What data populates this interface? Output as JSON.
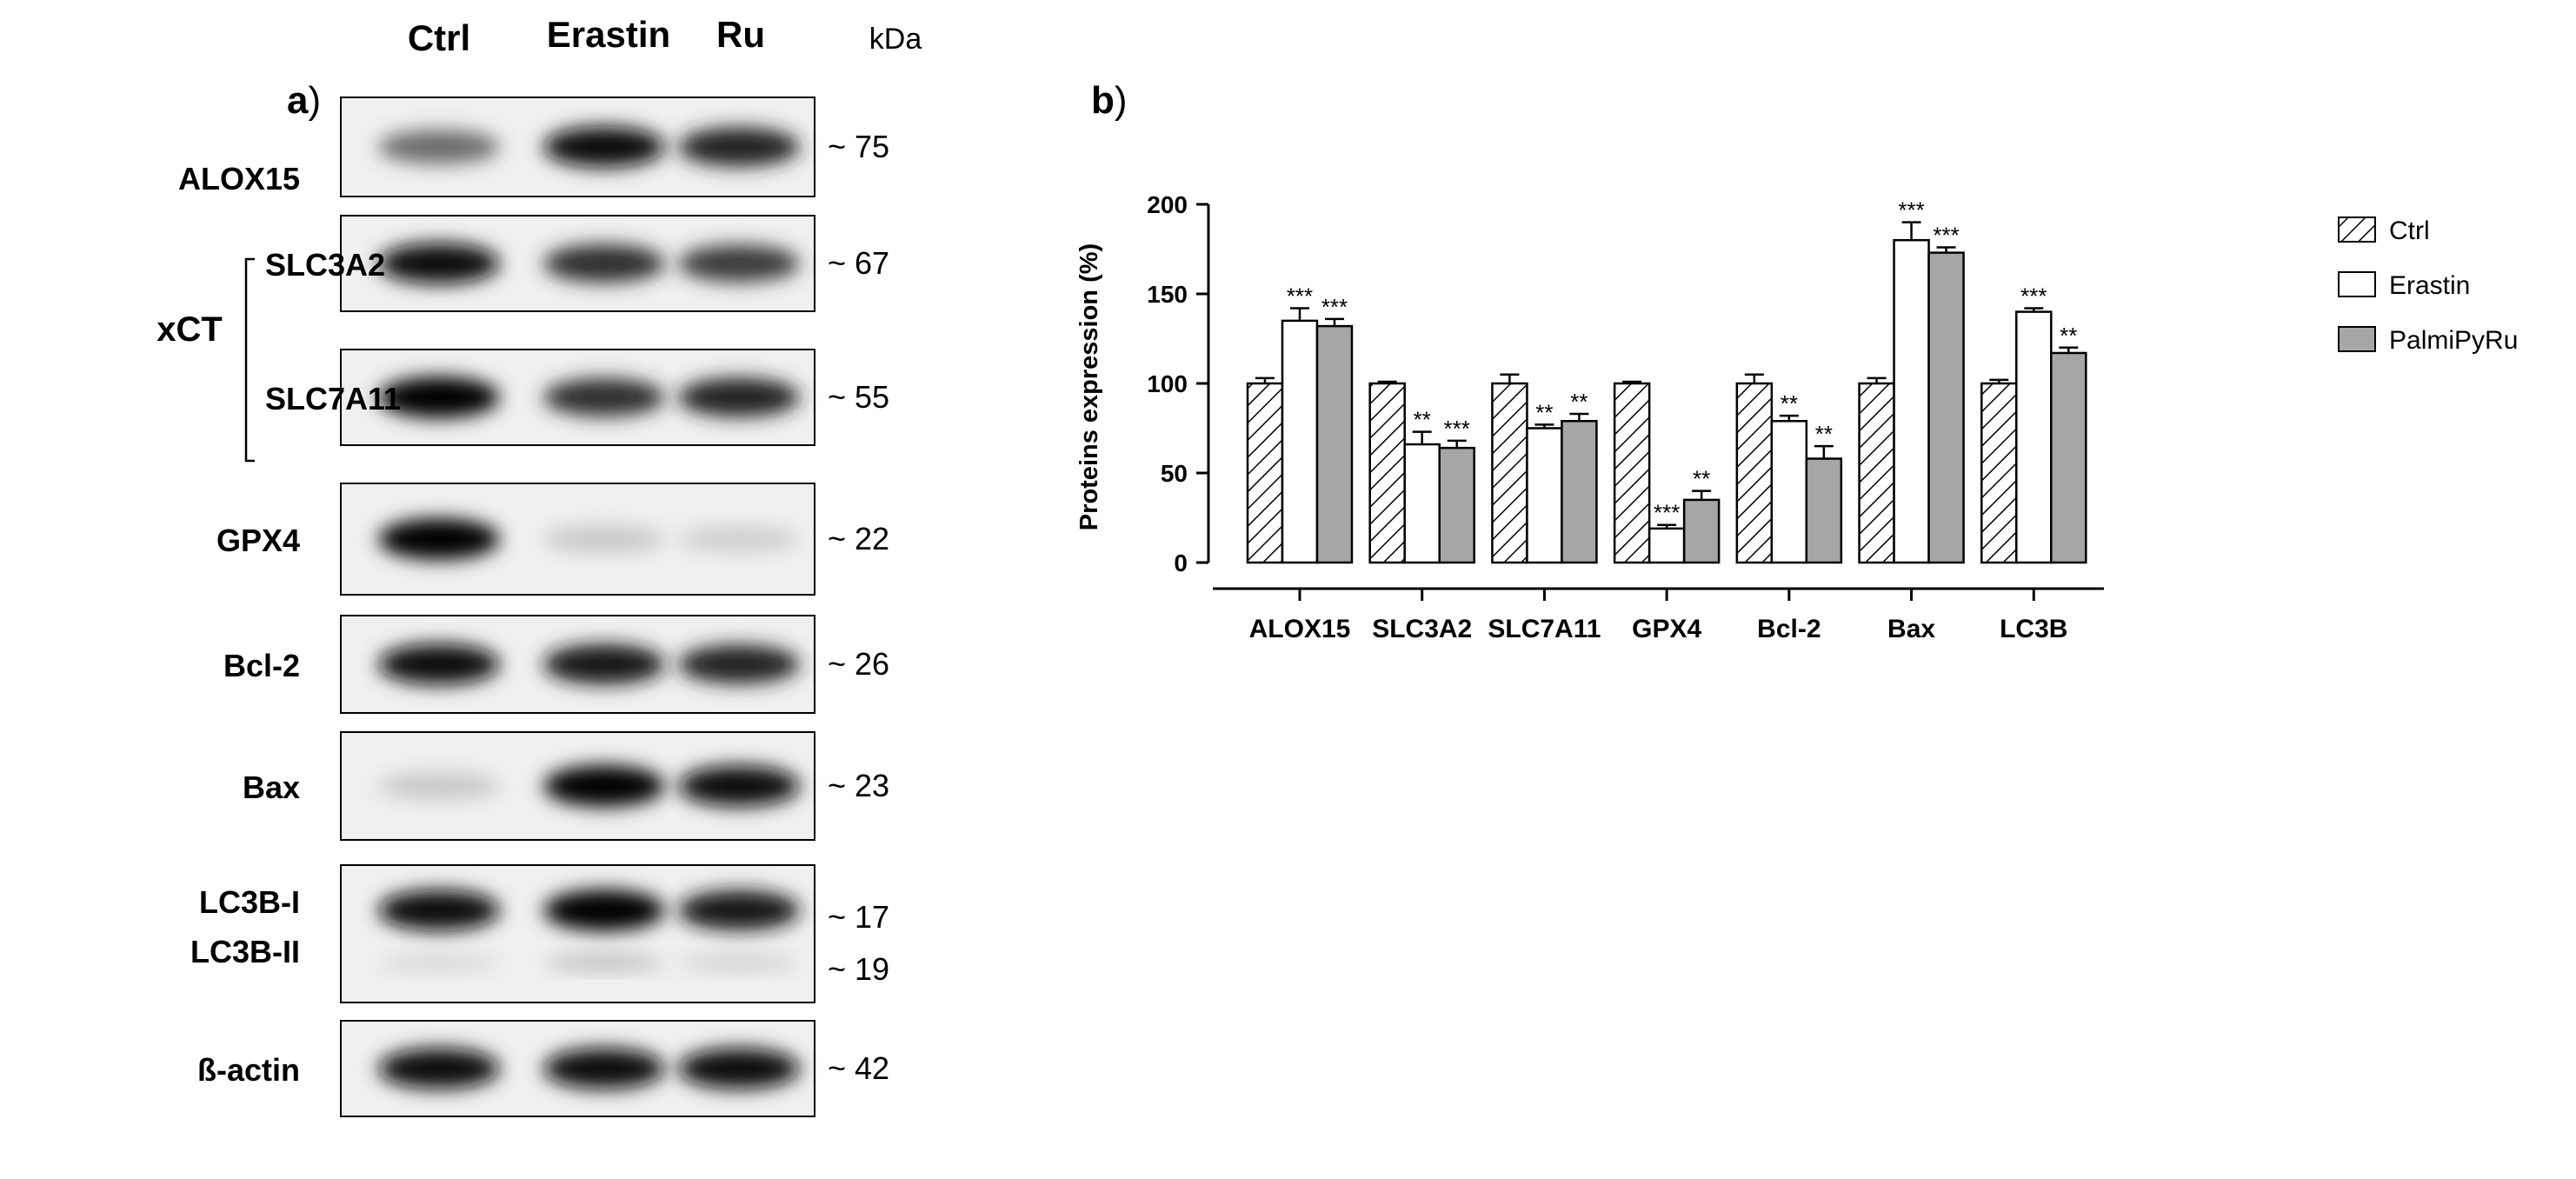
{
  "panel_a": {
    "label": "a",
    "lanes": [
      "Ctrl",
      "Erastin",
      "Ru"
    ],
    "kda_label": "kDa",
    "group_label": "xCT",
    "blots": [
      {
        "name": "ALOX15",
        "kda": "~ 75",
        "intensity": [
          0.55,
          0.95,
          0.85
        ]
      },
      {
        "name": "SLC3A2",
        "kda": "~ 67",
        "intensity": [
          0.95,
          0.8,
          0.75
        ]
      },
      {
        "name": "SLC7A11",
        "kda": "~ 55",
        "intensity": [
          1.0,
          0.8,
          0.85
        ]
      },
      {
        "name": "GPX4",
        "kda": "~ 22",
        "intensity": [
          1.0,
          0.15,
          0.12
        ]
      },
      {
        "name": "Bcl-2",
        "kda": "~ 26",
        "intensity": [
          0.95,
          0.9,
          0.85
        ]
      },
      {
        "name": "Bax",
        "kda": "~ 23",
        "intensity": [
          0.15,
          1.0,
          0.95
        ]
      },
      {
        "name": "LC3B-I",
        "kda": "~ 17",
        "second_name": "LC3B-II",
        "second_kda": "~ 19",
        "intensity": [
          0.95,
          1.0,
          0.9
        ],
        "intensity2": [
          0.1,
          0.2,
          0.12
        ]
      },
      {
        "name": "ß-actin",
        "kda": "~ 42",
        "intensity": [
          0.95,
          0.95,
          0.95
        ]
      }
    ]
  },
  "chart_data": {
    "type": "bar",
    "panel_label": "b",
    "title": "",
    "xlabel": "",
    "ylabel": "Proteins expression (%)",
    "ylim": [
      0,
      200
    ],
    "yticks": [
      0,
      50,
      100,
      150,
      200
    ],
    "grid": false,
    "legend_position": "top-right",
    "categories": [
      "ALOX15",
      "SLC3A2",
      "SLC7A11",
      "GPX4",
      "Bcl-2",
      "Bax",
      "LC3B"
    ],
    "series": [
      {
        "name": "Ctrl",
        "style": "hatched",
        "values": [
          100,
          100,
          100,
          100,
          100,
          100,
          100
        ],
        "errors": [
          3,
          1,
          5,
          1,
          5,
          3,
          2
        ],
        "sig": [
          "",
          "",
          "",
          "",
          "",
          "",
          ""
        ]
      },
      {
        "name": "Erastin",
        "style": "white",
        "values": [
          135,
          66,
          75,
          19,
          79,
          180,
          140
        ],
        "errors": [
          7,
          7,
          2,
          2,
          3,
          10,
          2
        ],
        "sig": [
          "***",
          "**",
          "**",
          "***",
          "**",
          "***",
          "***"
        ]
      },
      {
        "name": "PalmiPyRu",
        "style": "gray",
        "values": [
          132,
          64,
          79,
          35,
          58,
          173,
          117
        ],
        "errors": [
          4,
          4,
          4,
          5,
          7,
          3,
          3
        ],
        "sig": [
          "***",
          "***",
          "**",
          "**",
          "**",
          "***",
          "**"
        ]
      }
    ],
    "colors": {
      "hatched": "#ffffff",
      "white": "#ffffff",
      "gray": "#a6a6a6",
      "stroke": "#000000"
    }
  }
}
